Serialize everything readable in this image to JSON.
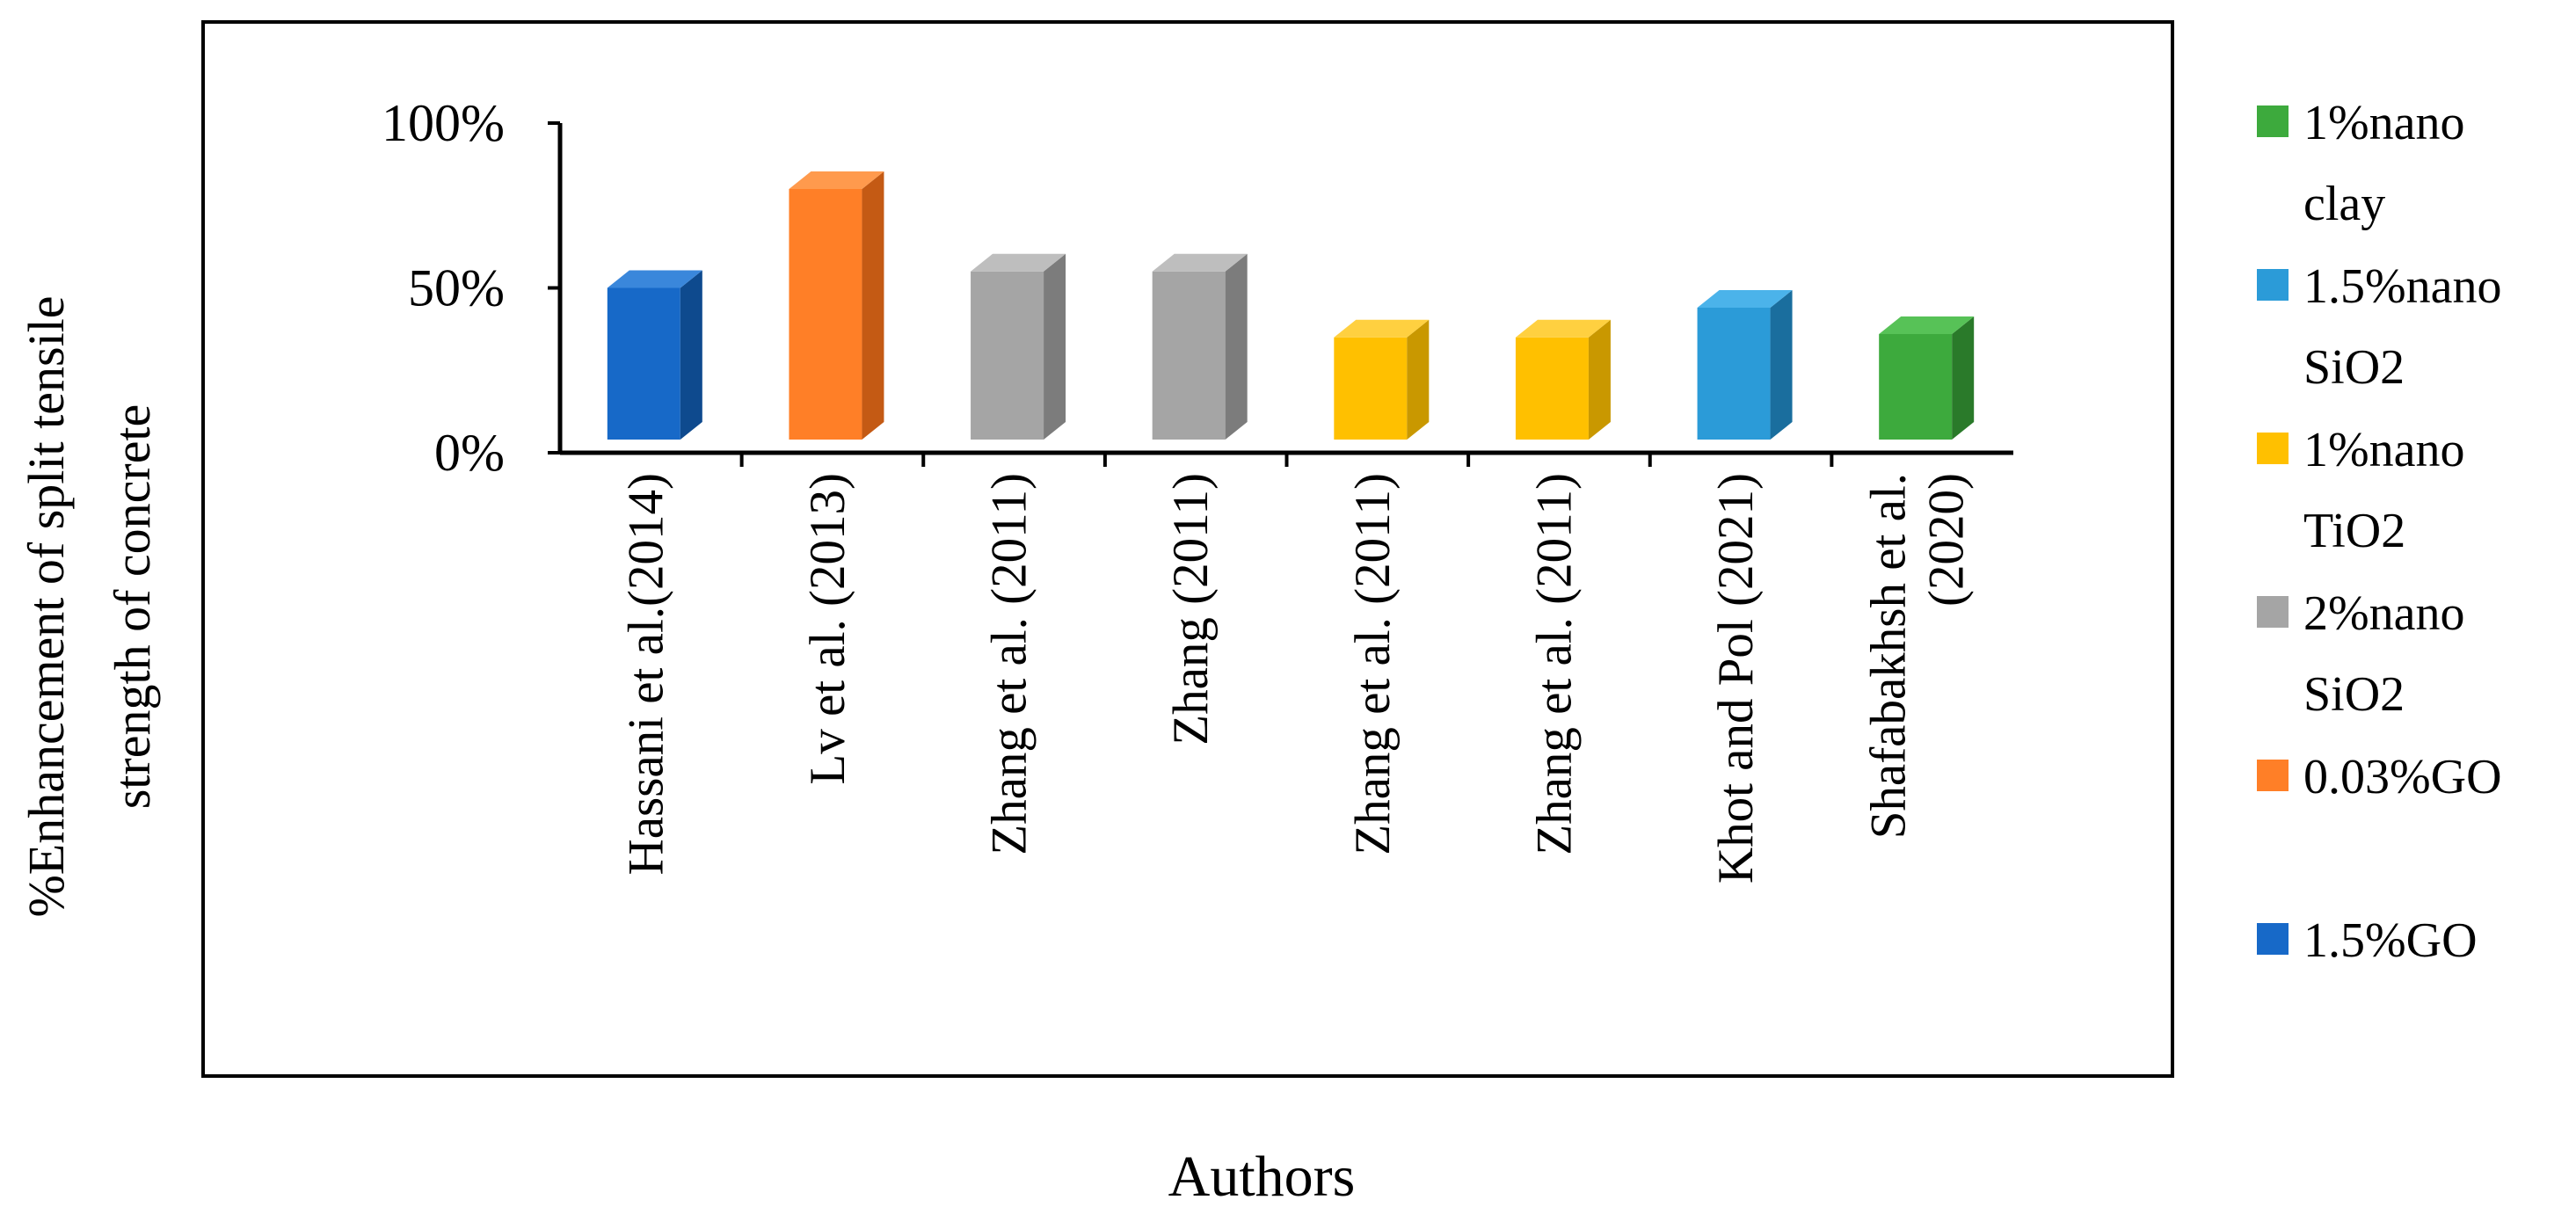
{
  "chart_data": {
    "type": "bar",
    "style": "3d-column",
    "xlabel": "Authors",
    "ylabel_lines": [
      "%Enhancement of split tensile",
      "strength of concrete"
    ],
    "ylim": [
      0,
      1
    ],
    "yticks": [
      0,
      0.5,
      1
    ],
    "ytick_labels": [
      "0%",
      "50%",
      "100%"
    ],
    "grid": false,
    "legend_position": "right",
    "categories": [
      {
        "label": [
          "Hassani et al.(2014)"
        ],
        "value": 0.5,
        "series": "1.5%GO"
      },
      {
        "label": [
          "Lv et al. (2013)"
        ],
        "value": 0.8,
        "series": "0.03%GO"
      },
      {
        "label": [
          "Zhang et al. (2011)"
        ],
        "value": 0.55,
        "series": "2%nano SiO2"
      },
      {
        "label": [
          "Zhang (2011)"
        ],
        "value": 0.55,
        "series": "2%nano SiO2"
      },
      {
        "label": [
          "Zhang et al. (2011)"
        ],
        "value": 0.35,
        "series": "1%nano TiO2"
      },
      {
        "label": [
          "Zhang et al. (2011)"
        ],
        "value": 0.35,
        "series": "1%nano TiO2"
      },
      {
        "label": [
          "Khot and Pol (2021)"
        ],
        "value": 0.44,
        "series": "1.5%nano SiO2"
      },
      {
        "label": [
          "Shafabakhsh et al.",
          "(2020)"
        ],
        "value": 0.36,
        "series": "1%nano clay"
      }
    ],
    "series": [
      {
        "name": "1%nano clay",
        "lines": [
          "1%nano",
          "clay"
        ],
        "color": "#3DAA3D",
        "side": "#2A7A2A",
        "top": "#57C257"
      },
      {
        "name": "1.5%nano SiO2",
        "lines": [
          "1.5%nano",
          "SiO2"
        ],
        "color": "#2B9BD8",
        "side": "#1A6E9E",
        "top": "#4BB3EA"
      },
      {
        "name": "1%nano TiO2",
        "lines": [
          "1%nano",
          "TiO2"
        ],
        "color": "#FFC000",
        "side": "#C99800",
        "top": "#FFD040"
      },
      {
        "name": "2%nano SiO2",
        "lines": [
          "2%nano",
          "SiO2"
        ],
        "color": "#A5A5A5",
        "side": "#7C7C7C",
        "top": "#BEBEBE"
      },
      {
        "name": "0.03%GO",
        "lines": [
          "0.03%GO",
          ""
        ],
        "color": "#FF7F27",
        "side": "#C45A14",
        "top": "#FF9A4D"
      },
      {
        "name": "1.5%GO",
        "lines": [
          "1.5%GO"
        ],
        "color": "#1769C8",
        "side": "#0E4A8E",
        "top": "#3A87DB"
      }
    ]
  }
}
